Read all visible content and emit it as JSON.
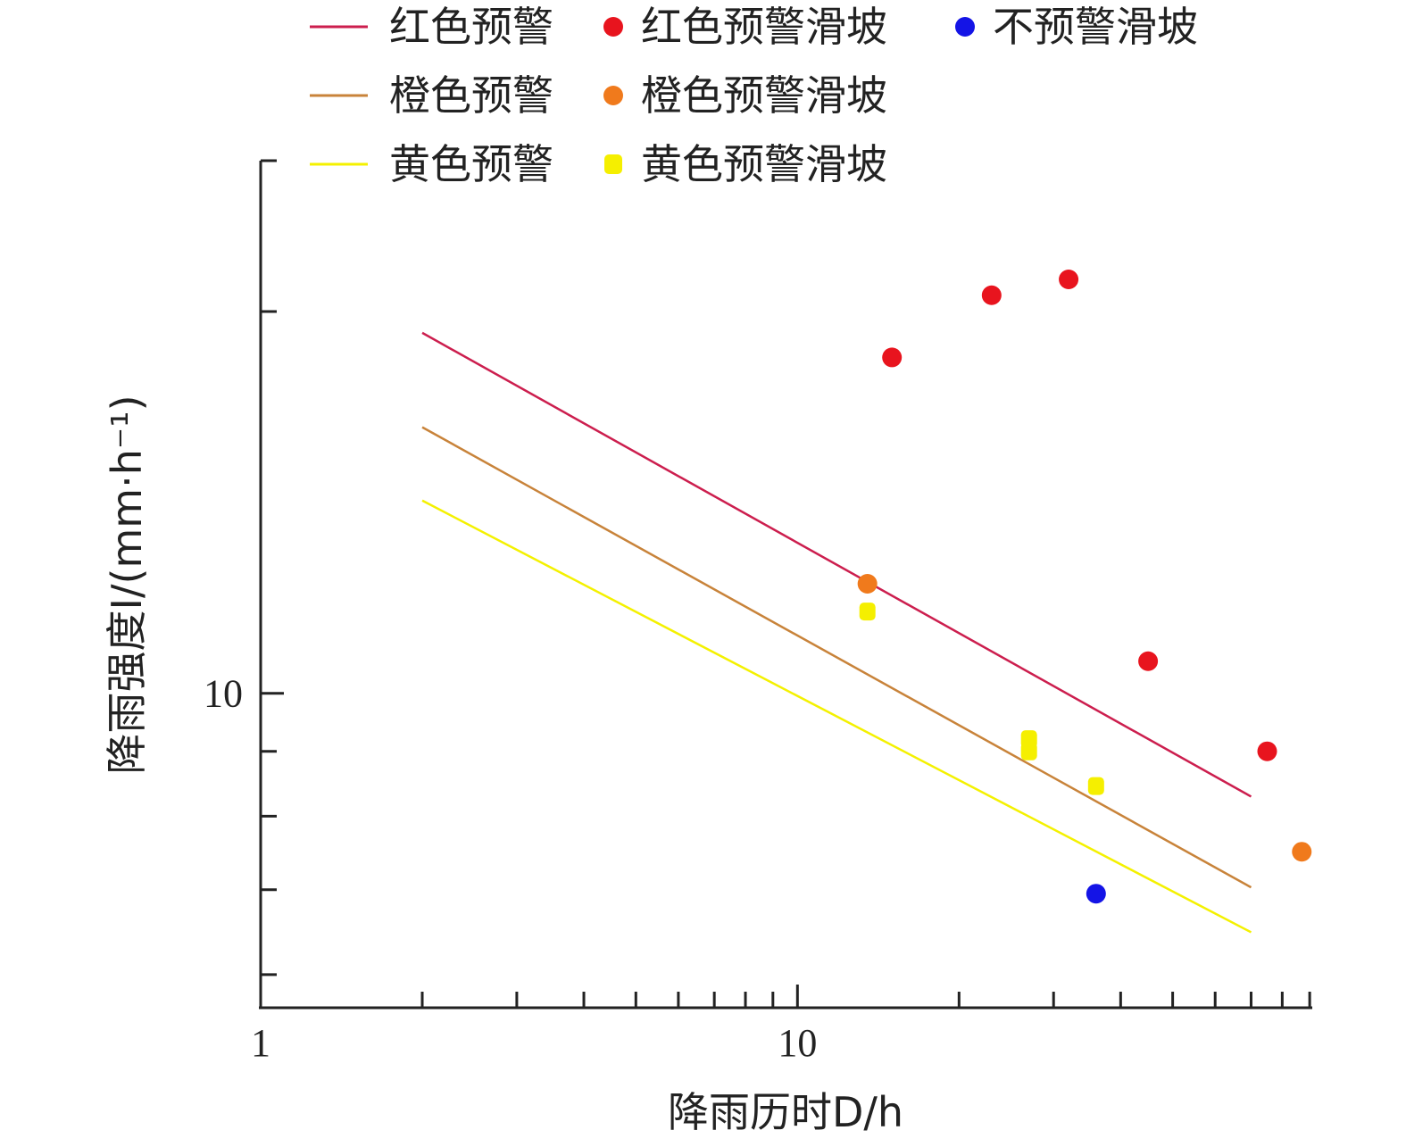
{
  "chart_data": {
    "type": "scatter",
    "xscale": "log",
    "yscale": "log",
    "xlabel": "降雨历时D/h",
    "ylabel": "降雨强度I/(mm·h⁻¹)",
    "xlim": [
      1,
      91
    ],
    "ylim": [
      5.65,
      26.3
    ],
    "x_tick_labels": [
      {
        "value": 1,
        "text": "1"
      },
      {
        "value": 10,
        "text": "10"
      }
    ],
    "y_tick_labels": [
      {
        "value": 10,
        "text": "10"
      }
    ],
    "grid": false,
    "legend_position": "top",
    "lines": [
      {
        "name": "红色预警",
        "color": "#cc1e4e",
        "x": [
          2,
          70
        ],
        "y": [
          19.24,
          8.29
        ]
      },
      {
        "name": "橙色预警",
        "color": "#c8833a",
        "x": [
          2,
          70
        ],
        "y": [
          16.21,
          7.03
        ]
      },
      {
        "name": "黄色预警",
        "color": "#f4f100",
        "x": [
          2,
          70
        ],
        "y": [
          14.19,
          6.48
        ]
      }
    ],
    "series": [
      {
        "name": "红色预警滑坡",
        "color": "#e8141e",
        "marker": "circle",
        "points": [
          [
            15,
            18.4
          ],
          [
            23,
            20.6
          ],
          [
            32,
            21.2
          ],
          [
            45,
            10.6
          ],
          [
            75,
            9.0
          ]
        ]
      },
      {
        "name": "橙色预警滑坡",
        "color": "#f07a1c",
        "marker": "circle",
        "points": [
          [
            13.5,
            12.2
          ],
          [
            87,
            7.5
          ]
        ]
      },
      {
        "name": "黄色预警滑坡",
        "color": "#f5ef00",
        "marker": "square",
        "points": [
          [
            13.5,
            11.6
          ],
          [
            27,
            9.2
          ],
          [
            27,
            9.0
          ],
          [
            36,
            8.45
          ]
        ]
      },
      {
        "name": "不预警滑坡",
        "color": "#1414e6",
        "marker": "circle",
        "points": [
          [
            36,
            6.95
          ]
        ]
      }
    ]
  }
}
